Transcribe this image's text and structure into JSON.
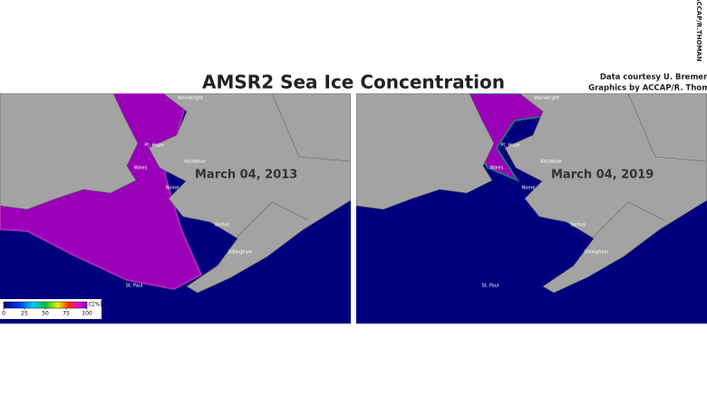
{
  "title": "AMSR2 Sea Ice Concentration",
  "credits": [
    "Data courtesy U. Bremen",
    "Graphics by ACCAP/R. Thoman"
  ],
  "watermark": "ACCAP/R.THOMAN",
  "panels": [
    {
      "date": "March 04, 2013"
    },
    {
      "date": "March 04, 2019"
    }
  ],
  "places": [
    "Wainwright",
    "Pt. Hope",
    "Kotzebue",
    "Wales",
    "Nome",
    "Bethel",
    "Dillingham",
    "St. Paul"
  ],
  "legend": {
    "label": "C[%]",
    "ticks": [
      0,
      25,
      50,
      75,
      100
    ]
  }
}
